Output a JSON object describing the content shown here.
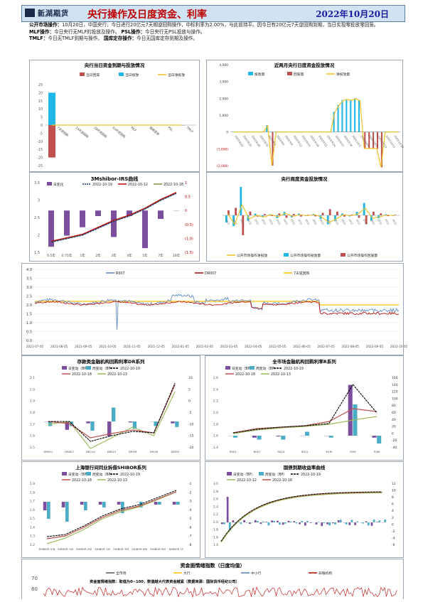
{
  "header": {
    "logo_cn": "新湖期货",
    "logo_en": "XINHU FUTURES",
    "title": "央行操作及日度资金、利率",
    "date": "2022年10月20日"
  },
  "notes": [
    {
      "label": "公开市场操作：",
      "text": "10月20日，中国央行，今日进行20亿元7天期逆回购操作，中标利率为2.00%，与此前持平。因今日有20亿元7天逆回购到期，当日实现零投放零回笼。"
    },
    {
      "label": "MLF操作：",
      "text": "今日央行无MLF的投放及操作。",
      "label2": "PSL操作：",
      "text2": "今日央行无PSL投放与操作。"
    },
    {
      "label": "TMLF：",
      "text": "今日无TMLF到期与操作。",
      "label2": "国库定存操作：",
      "text2": "今日无国库定存到期及操作。"
    }
  ],
  "charts": {
    "c1": {
      "title": "央行当日资金到期与投放情况",
      "legend": [
        "当日回笼",
        "当日投放",
        "当日净投放"
      ],
      "colors": [
        "#c0504d",
        "#1fb6e8",
        "#f0c020"
      ],
      "categories": [
        "7天逆回购",
        "14天逆回购",
        "28天逆回购",
        "63天逆回购",
        "MLF",
        "国库定存",
        "PSL",
        "TMLF"
      ],
      "series": [
        {
          "name": "当日回笼",
          "values": [
            -20,
            0,
            0,
            0,
            0,
            0,
            0,
            0
          ]
        },
        {
          "name": "当日投放",
          "values": [
            20,
            0,
            0,
            0,
            0,
            0,
            0,
            0
          ]
        },
        {
          "name": "当日净投放",
          "values": [
            0,
            0,
            0,
            0,
            0,
            0,
            0,
            0
          ]
        }
      ],
      "ylim": [
        -25,
        25
      ],
      "ticks": [
        "25",
        "20",
        "15",
        "10",
        "5",
        "0",
        "-5",
        "-10",
        "-15",
        "-20",
        "-25"
      ]
    },
    "c2": {
      "title": "近两月央行日度资金投放情况",
      "legend": [
        "投放量",
        "回笼量",
        "净投放量"
      ],
      "categories": [
        "2022/8/22",
        "2022/8/25",
        "2022/8/28",
        "2022/8/31",
        "2022/9/3",
        "2022/9/6",
        "2022/9/9",
        "2022/9/12",
        "2022/9/15",
        "2022/9/18",
        "2022/9/21",
        "2022/9/24",
        "2022/9/27",
        "2022/9/30",
        "2022/10/3",
        "2022/10/6",
        "2022/10/9",
        "2022/10/12",
        "2022/10/15",
        "2022/10/18"
      ],
      "ylim": [
        -2000,
        4000
      ],
      "ticks": [
        "4,000",
        "3,000",
        "2,000",
        "1,000",
        "0",
        "(1,000)",
        "(2,000)"
      ]
    },
    "c3": {
      "title": "3Mshibor-IRS曲线",
      "legend": [
        "日变化",
        "2022-10-19",
        "2022-10-12",
        "2022-10-18"
      ],
      "categories": [
        "0.5年",
        "0.75年",
        "1年",
        "2年",
        "3年",
        "4年",
        "5年",
        "7年",
        "10年"
      ],
      "series_change": [
        -1.3,
        -0.9,
        -0.6,
        -0.2,
        -0.95,
        -0.2,
        -1.35,
        -0.3,
        0
      ],
      "left_ticks": [
        "3.5",
        "3",
        "2.5",
        "2",
        "1.5"
      ],
      "right_ticks": [
        "1",
        "0.5",
        "0",
        "(0.5)",
        "(1.0)",
        "(1.5)"
      ]
    },
    "c4": {
      "title": "央行周度资金投放情况",
      "legend": [
        "公开市场操作净投放",
        "公开市场操作投放量",
        "公开市场操作回笼量"
      ]
    },
    "c5": {
      "title": "",
      "legend": [
        "R007",
        "DR007",
        "7天逆回购"
      ],
      "colors": [
        "#4f81bd",
        "#c00000",
        "#ffc000"
      ],
      "x_ticks": [
        "2021-07-05",
        "2021-08-05",
        "2021-09-05",
        "2021-10-05",
        "2021-11-05",
        "2021-12-05",
        "2022-01-05",
        "2022-02-05",
        "2022-03-05",
        "2022-04-05",
        "2022-05-05",
        "2022-06-05",
        "2022-07-05",
        "2022-08-05",
        "2022-09-05",
        "2022-10-05"
      ],
      "y_ticks": [
        "4.0",
        "3.5",
        "3.0",
        "2.5",
        "2.0",
        "1.5",
        "1.0",
        "0.5",
        "0.0"
      ],
      "ylim": [
        0,
        4
      ]
    },
    "c6": {
      "title": "存款类金融机构回购利率DR系列",
      "legend": [
        "日变动（BP）",
        "周变动（BP）",
        "2022-10-19",
        "2022-10-18",
        "2022-10-13"
      ],
      "categories": [
        "DR001",
        "DR007",
        "DR014",
        "DR021",
        "DR1M",
        "DR2M",
        "DR3M"
      ],
      "day": [
        0,
        -9,
        -2,
        -16,
        -1,
        0,
        -2
      ],
      "week": [
        -5,
        -5,
        -10,
        15,
        -8,
        -5,
        -6
      ],
      "line1": [
        1.65,
        1.65,
        1.65,
        1.62,
        1.72,
        1.72,
        2.0
      ],
      "line2": [
        1.65,
        1.62,
        1.66,
        1.62,
        1.7,
        1.68,
        1.95
      ],
      "line3": [
        1.58,
        1.55,
        1.6,
        1.6,
        1.72,
        1.7,
        1.9
      ],
      "left_ticks": [
        "2.1",
        "2.0",
        "1.9",
        "1.8",
        "1.7",
        "1.6",
        "1.5"
      ],
      "right_ticks": [
        "10",
        "5",
        "0",
        "-5",
        "-10",
        "-15",
        "-20"
      ]
    },
    "c7": {
      "title": "全市场金融机构回购利率R系列",
      "legend": [
        "日变动（BP）",
        "周变动（BP）",
        "2022-10-19",
        "2022-10-18",
        "2022-10-13"
      ],
      "categories": [
        "R001",
        "R007",
        "R014",
        "R021",
        "R1M",
        "R2M",
        "R3M"
      ],
      "day": [
        0,
        -5,
        -2,
        0,
        0,
        130,
        -5
      ],
      "week": [
        -5,
        -10,
        -10,
        10,
        -5,
        80,
        -20
      ],
      "left_ticks": [
        "2.6",
        "2.4",
        "2.2",
        "2.0",
        "1.8",
        "1.6",
        "1.4"
      ],
      "right_ticks": [
        "160",
        "140",
        "120",
        "100",
        "80",
        "60",
        "40",
        "20",
        "0",
        "-20",
        "-40"
      ]
    },
    "c8": {
      "title": "上海银行间同业拆借SHIBOR系列",
      "legend": [
        "日变动（BP）",
        "周变动（BP）",
        "2022-10-19",
        "2022-10-18",
        "2022-10-13"
      ],
      "categories": [
        "SHIBOR O/N",
        "SHIBOR 1W",
        "SHIBOR 2W",
        "SHIBOR 1M",
        "SHIBOR 3M",
        "SHIBOR 6M",
        "SHIBOR 9M",
        "SHIBOR 1Y"
      ],
      "left_ticks": [
        "1.9",
        "1.8",
        "1.7",
        "1.6",
        "1.5",
        "1.4",
        "1.3",
        "1.2"
      ],
      "right_ticks": [
        "-1",
        "-2",
        "-3",
        "-4",
        "-5",
        "-6",
        "-7",
        "-8"
      ]
    },
    "c9": {
      "title": "国债到期收益率曲线",
      "legend": [
        "日变动（BP）",
        "周变动（BP）",
        "2022-10-19",
        "2022-10-12",
        "2022-10-18"
      ],
      "left_ticks": [
        "3.0",
        "2.8",
        "2.6",
        "2.4",
        "2.2",
        "2.0",
        "1.8",
        "1.6",
        "1.4"
      ],
      "right_ticks": [
        "12",
        "10",
        "8",
        "6",
        "4",
        "2",
        "0",
        "-2",
        "-4",
        "-6"
      ]
    },
    "c10": {
      "title": "资金面情绪指数（日度均值）",
      "legend": [
        "全市场",
        "大行",
        "中小行",
        "非银机构"
      ],
      "subtitle": "资金面情绪指数：取值为0~100，数值越大代表资金越紧（数据来源：国际货币经纪公司）",
      "y_ticks": [
        "70",
        "60"
      ]
    }
  }
}
